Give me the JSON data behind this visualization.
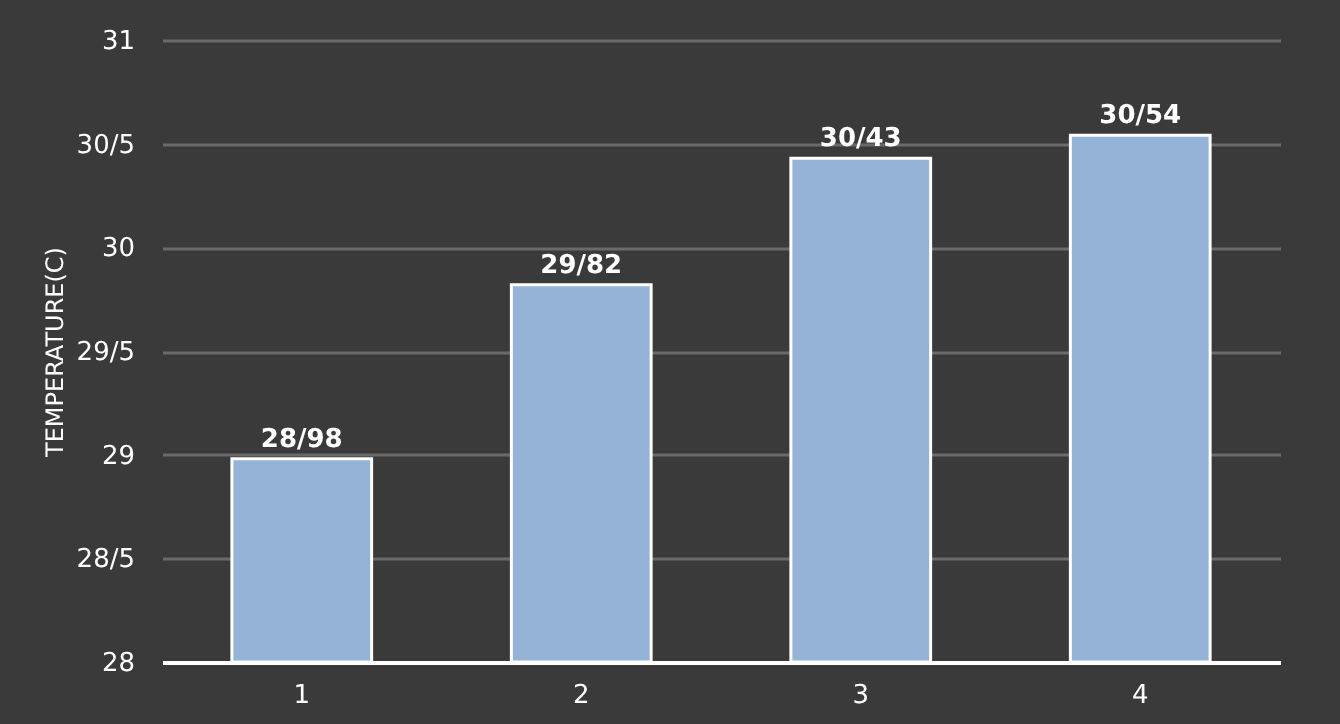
{
  "chart_data": {
    "type": "bar",
    "ylabel": "TEMPERATURE(C)",
    "categories": [
      "1",
      "2",
      "3",
      "4"
    ],
    "values": [
      28.98,
      29.82,
      30.43,
      30.54
    ],
    "value_labels": [
      "28/98",
      "29/82",
      "30/43",
      "30/54"
    ],
    "color": "#95b3d7",
    "ylim": [
      28,
      31
    ],
    "yticks": [
      28,
      {
        "value": 28.5,
        "label": "28/5"
      },
      29,
      {
        "value": 29.5,
        "label": "29/5"
      },
      30,
      {
        "value": 30.5,
        "label": "30/5"
      },
      31
    ],
    "grid": "y"
  }
}
